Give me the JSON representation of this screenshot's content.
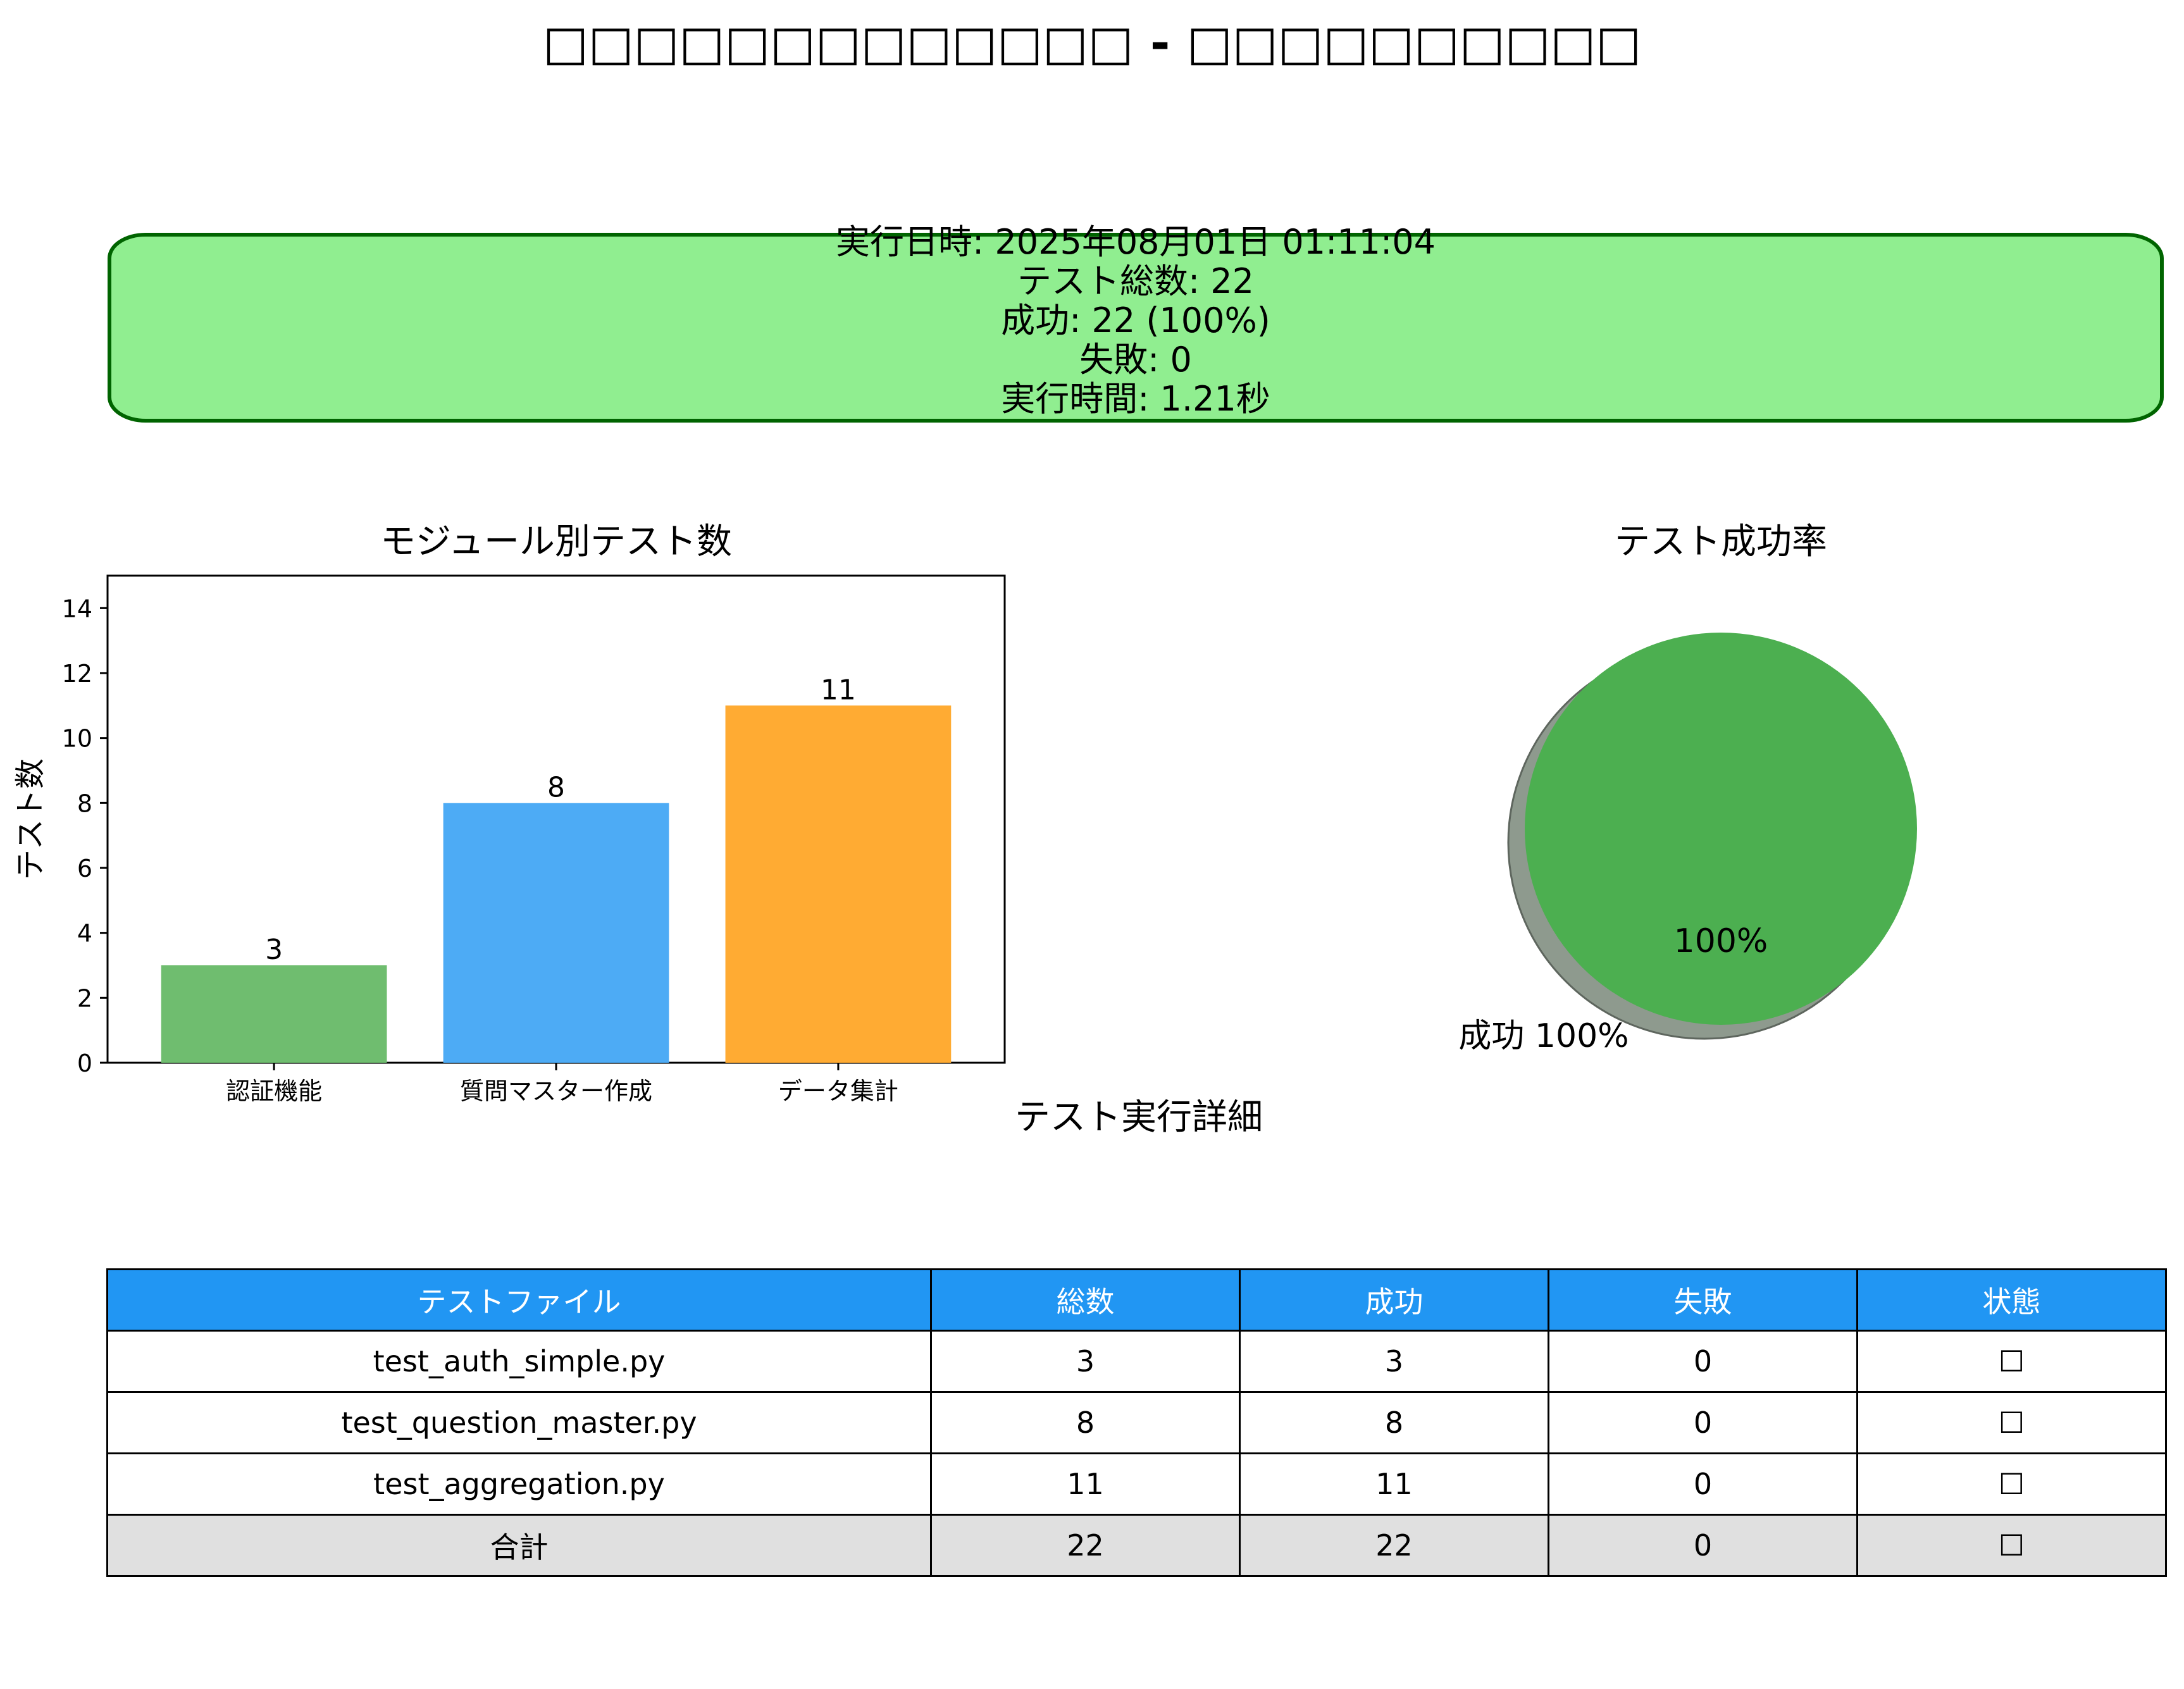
{
  "title": "□□□□□□□□□□□□□ - □□□□□□□□□□",
  "summary": {
    "lines": [
      "実行日時: 2025年08月01日 01:11:04",
      "テスト総数: 22",
      "成功: 22 (100%)",
      "失敗: 0",
      "実行時間: 1.21秒"
    ],
    "colors": {
      "fill": "#90ee90",
      "border": "#006400"
    }
  },
  "chart_data": [
    {
      "type": "bar",
      "title": "モジュール別テスト数",
      "ylabel": "テスト数",
      "xlabel": "",
      "categories": [
        "認証機能",
        "質問マスター作成",
        "データ集計"
      ],
      "values": [
        3,
        8,
        11
      ],
      "data_labels": [
        "3",
        "8",
        "11"
      ],
      "colors": [
        "#6fbd6f",
        "#4dabf5",
        "#ffab33"
      ],
      "ylim": [
        0,
        15
      ],
      "yticks": [
        0,
        2,
        4,
        6,
        8,
        10,
        12,
        14
      ],
      "grid": false
    },
    {
      "type": "pie",
      "title": "テスト成功率",
      "labels": [
        "成功 100%"
      ],
      "values": [
        100
      ],
      "autopct_labels": [
        "100%"
      ],
      "colors": [
        "#4caf50"
      ],
      "shadow": true
    }
  ],
  "table": {
    "title": "テスト実行詳細",
    "headers": [
      "テストファイル",
      "総数",
      "成功",
      "失敗",
      "状態"
    ],
    "rows": [
      [
        "test_auth_simple.py",
        "3",
        "3",
        "0",
        "☐"
      ],
      [
        "test_question_master.py",
        "8",
        "8",
        "0",
        "☐"
      ],
      [
        "test_aggregation.py",
        "11",
        "11",
        "0",
        "☐"
      ]
    ],
    "total_row": [
      "合計",
      "22",
      "22",
      "0",
      "☐"
    ],
    "colors": {
      "header": "#2196f3",
      "header_text": "#ffffff",
      "total": "#e0e0e0"
    }
  }
}
